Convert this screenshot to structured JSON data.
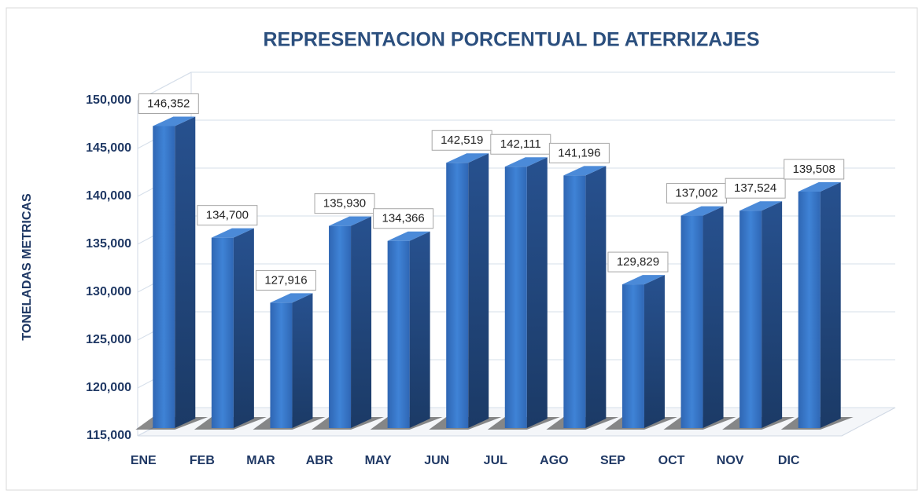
{
  "chart_data": {
    "type": "bar3d",
    "title": "REPRESENTACION PORCENTUAL DE ATERRIZAJES",
    "y_label": "TONELADAS METRICAS",
    "categories": [
      "ENE",
      "FEB",
      "MAR",
      "ABR",
      "MAY",
      "JUN",
      "JUL",
      "AGO",
      "SEP",
      "OCT",
      "NOV",
      "DIC"
    ],
    "values": [
      146352,
      134700,
      127916,
      135930,
      134366,
      142519,
      142111,
      141196,
      129829,
      137002,
      137524,
      139508
    ],
    "value_labels": [
      "146,352",
      "134,700",
      "127,916",
      "135,930",
      "134,366",
      "142,519",
      "142,111",
      "141,196",
      "129,829",
      "137,002",
      "137,524",
      "139,508"
    ],
    "color": "#3a78c9",
    "ylim": [
      115000,
      150000
    ],
    "yticks": [
      {
        "value": 115000,
        "label": "115,000"
      },
      {
        "value": 120000,
        "label": "120,000"
      },
      {
        "value": 125000,
        "label": "125,000"
      },
      {
        "value": 130000,
        "label": "130,000"
      },
      {
        "value": 135000,
        "label": "135,000"
      },
      {
        "value": 140000,
        "label": "140,000"
      },
      {
        "value": 145000,
        "label": "145,000"
      },
      {
        "value": 150000,
        "label": "150,000"
      }
    ],
    "grid": true
  }
}
